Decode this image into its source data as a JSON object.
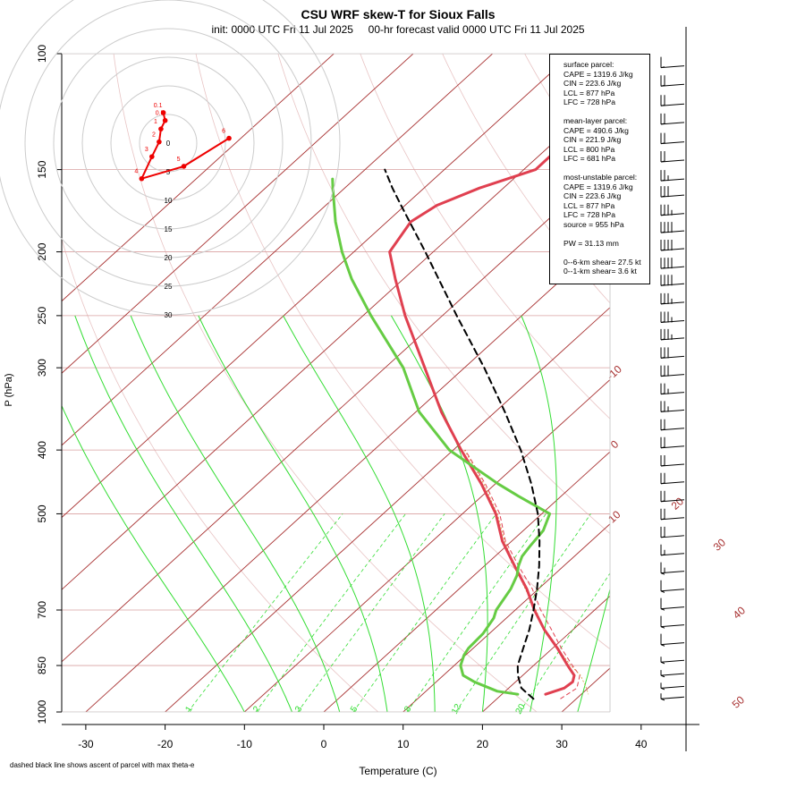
{
  "title": "CSU WRF skew-T for Sioux Falls",
  "subtitle": "init: 0000 UTC Fri 11 Jul 2025     00-hr forecast valid 0000 UTC Fri 11 Jul 2025",
  "footnote": "dashed black line shows ascent of parcel with max theta-e",
  "info": {
    "surface": [
      "surface parcel:",
      "CAPE = 1319.6 J/kg",
      "CIN = 223.6 J/kg",
      "LCL = 877 hPa",
      "LFC = 728 hPa"
    ],
    "mean_layer": [
      "mean-layer parcel:",
      "CAPE = 490.6 J/kg",
      "CIN = 221.9 J/kg",
      "LCL = 800 hPa",
      "LFC = 681 hPa"
    ],
    "most_unstable": [
      "most-unstable parcel:",
      "CAPE = 1319.6 J/kg",
      "CIN = 223.6 J/kg",
      "LCL = 877 hPa",
      "LFC = 728 hPa",
      "source = 955 hPa"
    ],
    "pw": "PW =  31.13 mm",
    "shear": [
      "0--6-km shear= 27.5 kt",
      "0--1-km shear= 3.6 kt"
    ]
  },
  "colors": {
    "temperature": "#e04050",
    "dewpoint": "#66cc44",
    "parcel": "#000000",
    "isotherm": "#a83232",
    "isobar": "#d9a0a0",
    "dry_adiabat": "#e8c4c4",
    "moist_adiabat": "#33dd33",
    "mixing_ratio": "#33dd33",
    "hodograph": "#ee0000"
  },
  "chart_data": {
    "type": "skew-t",
    "title": "CSU WRF skew-T for Sioux Falls",
    "xlabel": "Temperature (C)",
    "ylabel": "P (hPa)",
    "xlim": [
      -33,
      46
    ],
    "ylim": [
      1000,
      100
    ],
    "x_ticks": [
      -30,
      -20,
      -10,
      0,
      10,
      20,
      30,
      40
    ],
    "p_ticks": [
      100,
      150,
      200,
      250,
      300,
      400,
      500,
      700,
      850,
      1000
    ],
    "isobars": [
      100,
      150,
      200,
      250,
      300,
      400,
      500,
      700,
      850,
      1000
    ],
    "isotherms": [
      -90,
      -80,
      -70,
      -60,
      -50,
      -40,
      -30,
      -20,
      -10,
      0,
      10,
      20,
      30,
      40,
      50
    ],
    "isotherm_labels": [
      -10,
      0,
      10,
      20,
      30,
      40,
      50
    ],
    "mixing_ratio_labels": [
      "1",
      "2",
      "3",
      "5",
      "8",
      "12",
      "20"
    ],
    "mixing_ratios": [
      1,
      2,
      3,
      5,
      8,
      12,
      20
    ],
    "moist_adiabats_c": [
      -10,
      -4,
      2,
      8,
      14,
      20,
      26,
      32
    ],
    "dry_adiabats_k": [
      280,
      300,
      320,
      340,
      360,
      380,
      400,
      420,
      440,
      460
    ],
    "series": [
      {
        "key": "temperature",
        "p": [
          940,
          920,
          900,
          880,
          850,
          800,
          750,
          700,
          650,
          600,
          550,
          500,
          450,
          400,
          350,
          300,
          250,
          220,
          200,
          180,
          170,
          160,
          150,
          130,
          120,
          112
        ],
        "t": [
          25.5,
          27,
          27.2,
          26.5,
          24.3,
          20.6,
          16.4,
          12.4,
          8.5,
          3.8,
          -1.2,
          -5.8,
          -11.8,
          -19,
          -26.8,
          -35,
          -44.7,
          -51,
          -55.5,
          -57,
          -56,
          -53,
          -48.5,
          -48.6,
          -48.4,
          -48
        ]
      },
      {
        "key": "dewpoint",
        "p": [
          940,
          930,
          900,
          880,
          850,
          820,
          800,
          760,
          720,
          700,
          650,
          620,
          600,
          580,
          560,
          530,
          500,
          470,
          450,
          400,
          350,
          300,
          250,
          220,
          200,
          180,
          160,
          155
        ],
        "t": [
          22,
          19,
          14.8,
          12.5,
          10.8,
          9.8,
          9.4,
          9.2,
          8.4,
          7.6,
          6.5,
          5.4,
          4.3,
          3.4,
          3.0,
          2.5,
          1.0,
          -5.4,
          -9.7,
          -20.5,
          -29.6,
          -37.7,
          -49,
          -56.5,
          -61.5,
          -66.5,
          -71.5,
          -72.8
        ]
      },
      {
        "key": "parcel",
        "p": [
          955,
          920,
          880,
          850,
          800,
          750,
          700,
          650,
          600,
          550,
          500,
          450,
          400,
          350,
          300,
          250,
          200,
          170,
          160,
          150
        ],
        "t": [
          24.6,
          21.6,
          19.4,
          18,
          16.3,
          14.5,
          12.3,
          9.8,
          6.9,
          3.5,
          -0.5,
          -5.5,
          -11.5,
          -18.8,
          -27.5,
          -38.2,
          -51,
          -60.5,
          -64,
          -67.5
        ]
      }
    ],
    "virtual_temperature": {
      "p": [
        955,
        920,
        880,
        850,
        800,
        750,
        700,
        650,
        600,
        550,
        500,
        450,
        400
      ],
      "t": [
        28,
        28.6,
        27.2,
        24.9,
        21.1,
        17.3,
        13.2,
        9.2,
        4.3,
        -0.8,
        -5.3,
        -11.3,
        -18.5
      ]
    },
    "moist_adiabat_path": {
      "p": [
        400,
        450,
        500,
        550,
        600,
        650,
        700,
        750,
        800,
        850,
        880,
        920,
        940
      ],
      "t": [
        -18.6,
        -11.5,
        -5.6,
        -0.9,
        3.8,
        8.3,
        12.6,
        16.4,
        20.6,
        24.7,
        27.3,
        29.8,
        30.9
      ]
    },
    "wind_barbs": [
      {
        "p": 105,
        "kt": 10
      },
      {
        "p": 112,
        "kt": 20
      },
      {
        "p": 120,
        "kt": 20
      },
      {
        "p": 128,
        "kt": 20
      },
      {
        "p": 137,
        "kt": 20
      },
      {
        "p": 146,
        "kt": 20
      },
      {
        "p": 156,
        "kt": 25
      },
      {
        "p": 165,
        "kt": 30
      },
      {
        "p": 176,
        "kt": 35
      },
      {
        "p": 187,
        "kt": 40
      },
      {
        "p": 199,
        "kt": 40
      },
      {
        "p": 212,
        "kt": 40
      },
      {
        "p": 225,
        "kt": 40
      },
      {
        "p": 240,
        "kt": 35
      },
      {
        "p": 256,
        "kt": 35
      },
      {
        "p": 272,
        "kt": 35
      },
      {
        "p": 290,
        "kt": 30
      },
      {
        "p": 309,
        "kt": 30
      },
      {
        "p": 329,
        "kt": 25
      },
      {
        "p": 350,
        "kt": 25
      },
      {
        "p": 373,
        "kt": 20
      },
      {
        "p": 397,
        "kt": 20
      },
      {
        "p": 423,
        "kt": 20
      },
      {
        "p": 450,
        "kt": 20
      },
      {
        "p": 479,
        "kt": 20
      },
      {
        "p": 510,
        "kt": 20
      },
      {
        "p": 543,
        "kt": 20
      },
      {
        "p": 578,
        "kt": 15
      },
      {
        "p": 615,
        "kt": 15
      },
      {
        "p": 655,
        "kt": 10
      },
      {
        "p": 697,
        "kt": 10
      },
      {
        "p": 742,
        "kt": 10
      },
      {
        "p": 790,
        "kt": 10
      },
      {
        "p": 840,
        "kt": 5
      },
      {
        "p": 880,
        "kt": 5
      },
      {
        "p": 920,
        "kt": 5
      },
      {
        "p": 955,
        "kt": 5
      }
    ],
    "hodograph": {
      "rings_kt": [
        5,
        10,
        15,
        20,
        25,
        30
      ],
      "ring_labels": [
        "0",
        "5",
        "10",
        "15",
        "20",
        "25",
        "30"
      ],
      "points": [
        {
          "label": "0.1",
          "u": -1.6,
          "v": 10.1
        },
        {
          "label": "0.5",
          "u": -1.0,
          "v": 7.5
        },
        {
          "label": "1",
          "u": -2.4,
          "v": 4.7
        },
        {
          "label": "2",
          "u": -3.0,
          "v": 0.4
        },
        {
          "label": "3",
          "u": -5.4,
          "v": -4.5
        },
        {
          "label": "4",
          "u": -8.8,
          "v": -11.8
        },
        {
          "label": "5",
          "u": 5.2,
          "v": -7.7
        },
        {
          "label": "6",
          "u": 20.2,
          "v": 1.6
        }
      ]
    }
  }
}
